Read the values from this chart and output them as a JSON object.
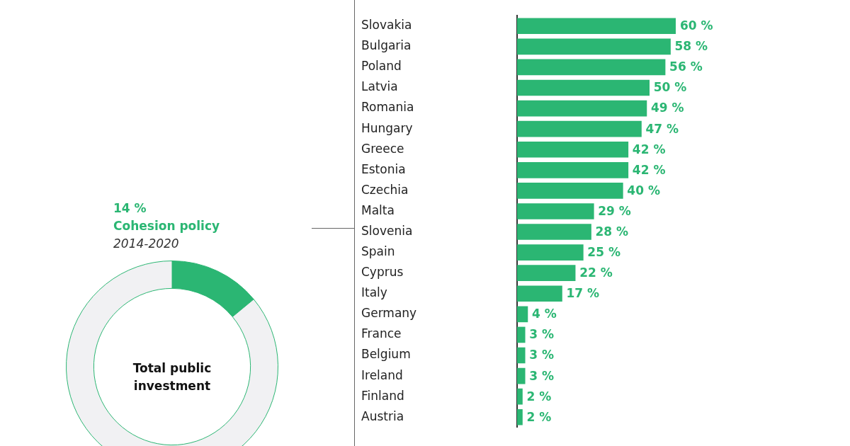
{
  "chart_data": [
    {
      "type": "donut",
      "title": "Total public investment",
      "categories": [
        "Cohesion policy",
        null
      ],
      "values": [
        14,
        86
      ],
      "colors": [
        "#2bb673",
        "#f1f1f3"
      ],
      "value_labels": [
        "14 %",
        null
      ],
      "annotations": [
        "2014-2020"
      ]
    },
    {
      "type": "bar",
      "orientation": "horizontal",
      "categories": [
        "Slovakia",
        "Bulgaria",
        "Poland",
        "Latvia",
        "Romania",
        "Hungary",
        "Greece",
        "Estonia",
        "Czechia",
        "Malta",
        "Slovenia",
        "Spain",
        "Cyprus",
        "Italy",
        "Germany",
        "France",
        "Belgium",
        "Ireland",
        "Finland",
        "Austria"
      ],
      "values": [
        60,
        58,
        56,
        50,
        49,
        47,
        42,
        42,
        40,
        29,
        28,
        25,
        22,
        17,
        4,
        3,
        3,
        3,
        2,
        2
      ],
      "color": "#2bb673",
      "value_labels": [
        "60 %",
        "58 %",
        "56 %",
        "50 %",
        "49 %",
        "47 %",
        "42 %",
        "42 %",
        "40 %",
        "29 %",
        "28 %",
        "25 %",
        "22 %",
        "17 %",
        "4 %",
        "3 %",
        "3 %",
        "3 %",
        "2 %",
        "2 %"
      ]
    }
  ]
}
